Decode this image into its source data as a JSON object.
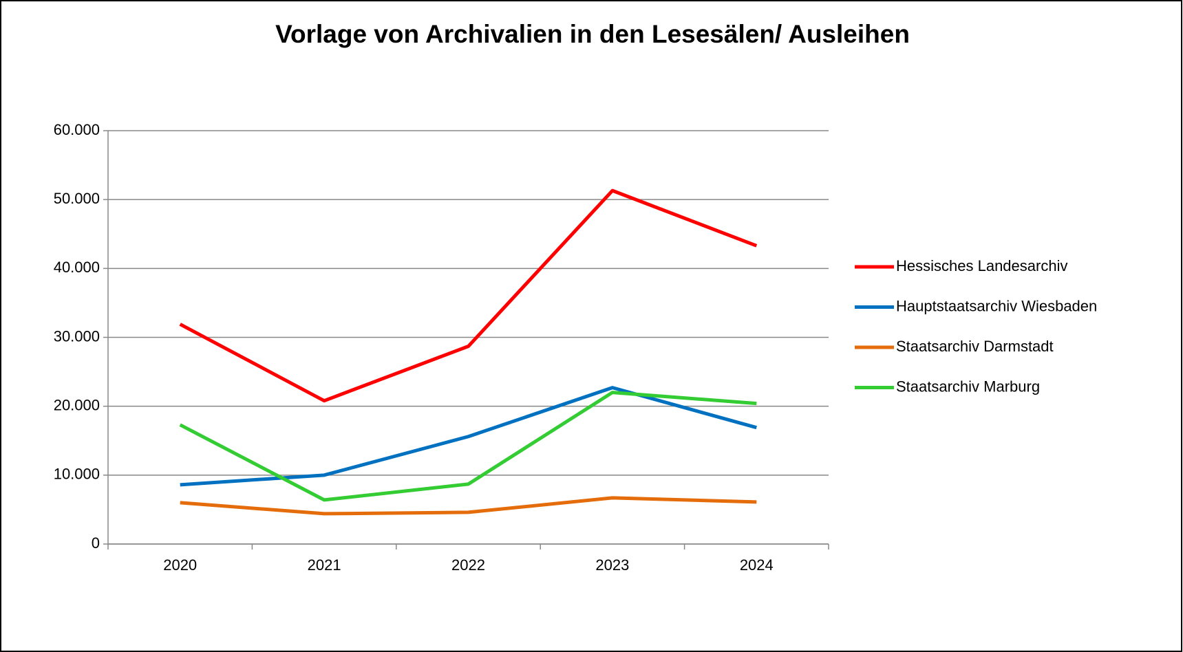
{
  "chart_data": {
    "type": "line",
    "title": "Vorlage von Archivalien in den Lesesälen/ Ausleihen",
    "categories": [
      "2020",
      "2021",
      "2022",
      "2023",
      "2024"
    ],
    "series": [
      {
        "name": "Hessisches Landesarchiv",
        "color": "#ff0000",
        "values": [
          31900,
          20800,
          28700,
          51300,
          43300
        ]
      },
      {
        "name": "Hauptstaatsarchiv Wiesbaden",
        "color": "#0070c0",
        "values": [
          8600,
          10000,
          15600,
          22700,
          16900
        ]
      },
      {
        "name": "Staatsarchiv Darmstadt",
        "color": "#e46c0a",
        "values": [
          6000,
          4400,
          4600,
          6700,
          6100
        ]
      },
      {
        "name": "Staatsarchiv Marburg",
        "color": "#33cc33",
        "values": [
          17300,
          6400,
          8700,
          22000,
          20400
        ]
      }
    ],
    "ylim": [
      0,
      60000
    ],
    "yticks": [
      0,
      {
        "value": 10000,
        "label": "10.000"
      },
      {
        "value": 20000,
        "label": "20.000"
      },
      {
        "value": 30000,
        "label": "30.000"
      },
      {
        "value": 40000,
        "label": "40.000"
      },
      {
        "value": 50000,
        "label": "50.000"
      },
      {
        "value": 60000,
        "label": "60.000"
      }
    ],
    "grid": true,
    "legend": "right"
  }
}
